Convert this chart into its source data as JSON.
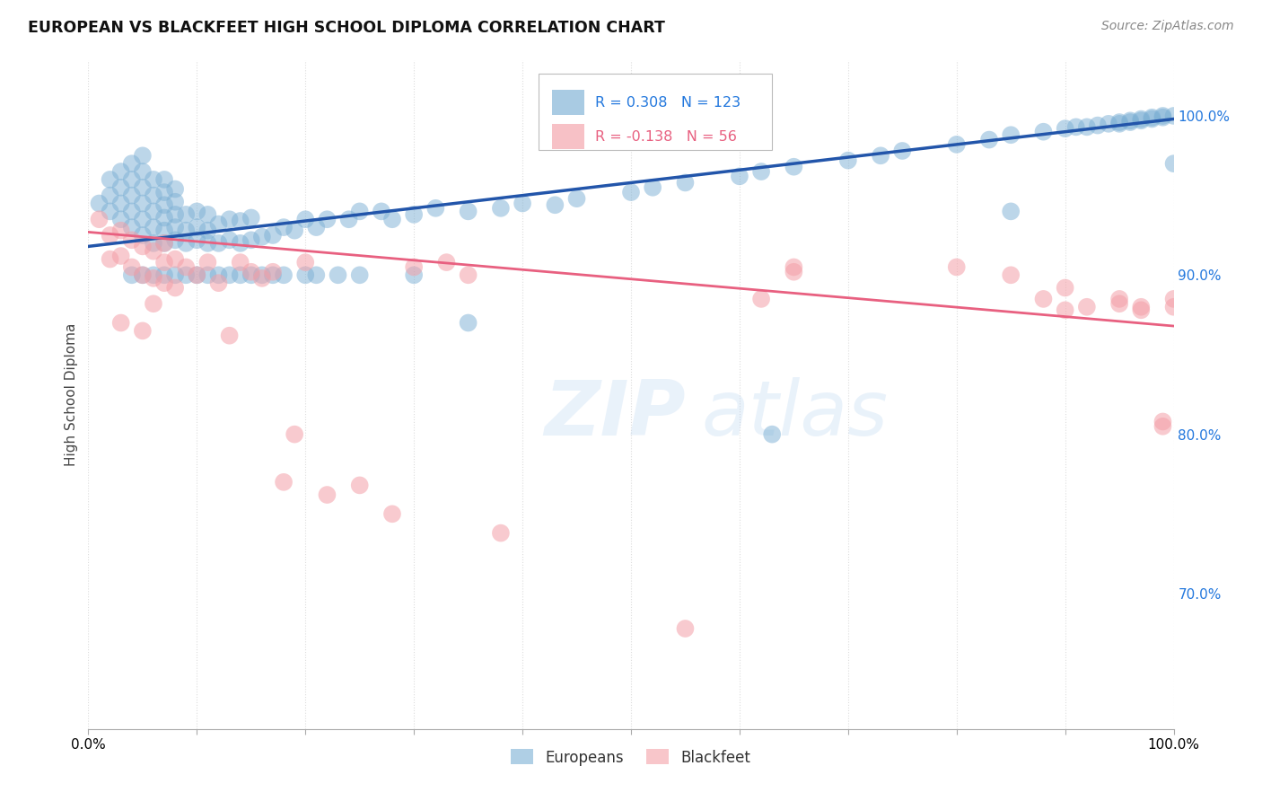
{
  "title": "EUROPEAN VS BLACKFEET HIGH SCHOOL DIPLOMA CORRELATION CHART",
  "source": "Source: ZipAtlas.com",
  "ylabel": "High School Diploma",
  "watermark": "ZIPatlas",
  "legend_blue_R": "0.308",
  "legend_blue_N": "123",
  "legend_pink_R": "-0.138",
  "legend_pink_N": "56",
  "legend_blue_label": "Europeans",
  "legend_pink_label": "Blackfeet",
  "xlim": [
    0,
    1
  ],
  "ylim": [
    0.615,
    1.035
  ],
  "yticks_right": [
    0.7,
    0.8,
    0.9,
    1.0
  ],
  "ytick_right_labels": [
    "70.0%",
    "80.0%",
    "90.0%",
    "100.0%"
  ],
  "blue_color": "#7BAFD4",
  "pink_color": "#F4A0A8",
  "blue_line_color": "#2255AA",
  "pink_line_color": "#E86080",
  "background_color": "#FFFFFF",
  "grid_color": "#DDDDDD",
  "title_color": "#111111",
  "right_tick_color": "#2277DD",
  "blue_line_y_start": 0.918,
  "blue_line_y_end": 0.998,
  "pink_line_y_start": 0.927,
  "pink_line_y_end": 0.868,
  "blue_scatter_x": [
    0.01,
    0.02,
    0.02,
    0.02,
    0.03,
    0.03,
    0.03,
    0.03,
    0.04,
    0.04,
    0.04,
    0.04,
    0.04,
    0.05,
    0.05,
    0.05,
    0.05,
    0.05,
    0.05,
    0.06,
    0.06,
    0.06,
    0.06,
    0.06,
    0.07,
    0.07,
    0.07,
    0.07,
    0.07,
    0.07,
    0.08,
    0.08,
    0.08,
    0.08,
    0.08,
    0.09,
    0.09,
    0.09,
    0.1,
    0.1,
    0.1,
    0.11,
    0.11,
    0.11,
    0.12,
    0.12,
    0.13,
    0.13,
    0.14,
    0.14,
    0.15,
    0.15,
    0.16,
    0.17,
    0.18,
    0.19,
    0.2,
    0.21,
    0.22,
    0.24,
    0.25,
    0.27,
    0.28,
    0.3,
    0.32,
    0.35,
    0.38,
    0.4,
    0.43,
    0.45,
    0.5,
    0.52,
    0.55,
    0.6,
    0.62,
    0.65,
    0.7,
    0.73,
    0.75,
    0.8,
    0.83,
    0.85,
    0.88,
    0.9,
    0.91,
    0.92,
    0.93,
    0.94,
    0.95,
    0.95,
    0.96,
    0.96,
    0.97,
    0.97,
    0.98,
    0.98,
    0.99,
    0.99,
    1.0,
    1.0,
    0.04,
    0.05,
    0.06,
    0.07,
    0.08,
    0.09,
    0.1,
    0.11,
    0.12,
    0.13,
    0.14,
    0.15,
    0.16,
    0.17,
    0.18,
    0.2,
    0.21,
    0.23,
    0.25,
    0.3,
    0.35,
    0.63,
    0.85
  ],
  "blue_scatter_y": [
    0.945,
    0.94,
    0.95,
    0.96,
    0.935,
    0.945,
    0.955,
    0.965,
    0.93,
    0.94,
    0.95,
    0.96,
    0.97,
    0.925,
    0.935,
    0.945,
    0.955,
    0.965,
    0.975,
    0.92,
    0.93,
    0.94,
    0.95,
    0.96,
    0.92,
    0.928,
    0.936,
    0.944,
    0.952,
    0.96,
    0.922,
    0.93,
    0.938,
    0.946,
    0.954,
    0.92,
    0.928,
    0.938,
    0.922,
    0.93,
    0.94,
    0.92,
    0.928,
    0.938,
    0.92,
    0.932,
    0.922,
    0.935,
    0.92,
    0.934,
    0.922,
    0.936,
    0.924,
    0.925,
    0.93,
    0.928,
    0.935,
    0.93,
    0.935,
    0.935,
    0.94,
    0.94,
    0.935,
    0.938,
    0.942,
    0.94,
    0.942,
    0.945,
    0.944,
    0.948,
    0.952,
    0.955,
    0.958,
    0.962,
    0.965,
    0.968,
    0.972,
    0.975,
    0.978,
    0.982,
    0.985,
    0.988,
    0.99,
    0.992,
    0.993,
    0.993,
    0.994,
    0.995,
    0.995,
    0.996,
    0.996,
    0.997,
    0.997,
    0.998,
    0.998,
    0.999,
    0.999,
    1.0,
    1.0,
    0.97,
    0.9,
    0.9,
    0.9,
    0.9,
    0.9,
    0.9,
    0.9,
    0.9,
    0.9,
    0.9,
    0.9,
    0.9,
    0.9,
    0.9,
    0.9,
    0.9,
    0.9,
    0.9,
    0.9,
    0.9,
    0.87,
    0.8,
    0.94
  ],
  "pink_scatter_x": [
    0.01,
    0.02,
    0.02,
    0.03,
    0.03,
    0.04,
    0.04,
    0.05,
    0.05,
    0.06,
    0.06,
    0.06,
    0.07,
    0.07,
    0.08,
    0.08,
    0.09,
    0.1,
    0.11,
    0.12,
    0.13,
    0.14,
    0.15,
    0.16,
    0.17,
    0.18,
    0.19,
    0.2,
    0.22,
    0.25,
    0.28,
    0.3,
    0.33,
    0.35,
    0.38,
    0.62,
    0.65,
    0.8,
    0.85,
    0.88,
    0.9,
    0.92,
    0.95,
    0.97,
    0.99,
    1.0,
    0.03,
    0.05,
    0.07,
    0.55,
    0.65,
    0.9,
    0.95,
    0.97,
    0.99,
    1.0
  ],
  "pink_scatter_y": [
    0.935,
    0.925,
    0.91,
    0.928,
    0.912,
    0.922,
    0.905,
    0.918,
    0.9,
    0.915,
    0.898,
    0.882,
    0.92,
    0.908,
    0.91,
    0.892,
    0.905,
    0.9,
    0.908,
    0.895,
    0.862,
    0.908,
    0.902,
    0.898,
    0.902,
    0.77,
    0.8,
    0.908,
    0.762,
    0.768,
    0.75,
    0.905,
    0.908,
    0.9,
    0.738,
    0.885,
    0.902,
    0.905,
    0.9,
    0.885,
    0.892,
    0.88,
    0.885,
    0.88,
    0.805,
    0.885,
    0.87,
    0.865,
    0.895,
    0.678,
    0.905,
    0.878,
    0.882,
    0.878,
    0.808,
    0.88
  ]
}
